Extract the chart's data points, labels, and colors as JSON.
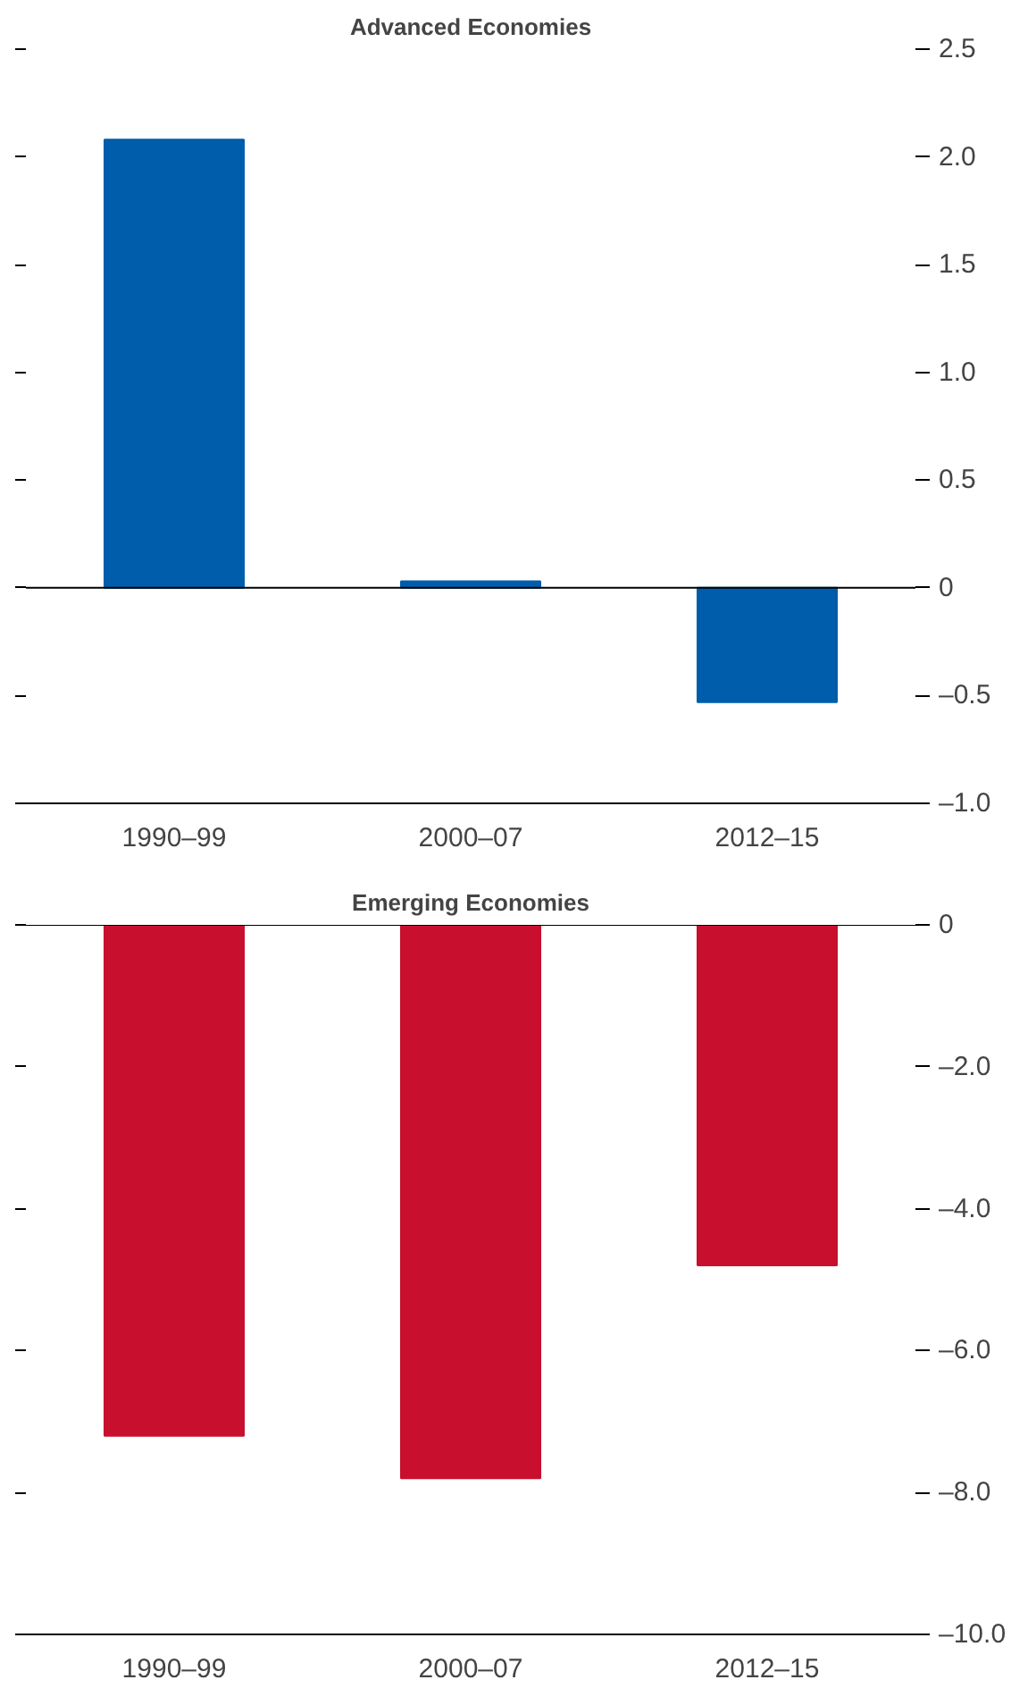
{
  "chart_data": [
    {
      "type": "bar",
      "title": "Advanced Economies",
      "categories": [
        "1990–99",
        "2000–07",
        "2012–15"
      ],
      "values": [
        2.08,
        0.03,
        -0.53
      ],
      "color": "#005dab",
      "ylim": [
        -1.0,
        2.5
      ],
      "yticks": [
        {
          "value": -1.0,
          "label": "–1.0"
        },
        {
          "value": -0.5,
          "label": "–0.5"
        },
        0,
        0.5,
        {
          "value": 1.0,
          "label": "1.0"
        },
        1.5,
        {
          "value": 2.0,
          "label": "2.0"
        },
        2.5
      ],
      "ref_lines": [
        {
          "axis": "y",
          "value": 0
        }
      ],
      "grid": false
    },
    {
      "type": "bar",
      "title": "Emerging Economies",
      "categories": [
        "1990–99",
        "2000–07",
        "2012–15"
      ],
      "values": [
        -7.2,
        -7.8,
        -4.8
      ],
      "color": "#c8102e",
      "ylim": [
        -10.0,
        0
      ],
      "yticks": [
        {
          "value": -10.0,
          "label": "–10.0"
        },
        {
          "value": -8.0,
          "label": "–8.0"
        },
        {
          "value": -6.0,
          "label": "–6.0"
        },
        {
          "value": -4.0,
          "label": "–4.0"
        },
        {
          "value": -2.0,
          "label": "–2.0"
        },
        0
      ],
      "ref_lines": [
        {
          "axis": "y",
          "value": 0
        }
      ],
      "grid": false
    }
  ]
}
